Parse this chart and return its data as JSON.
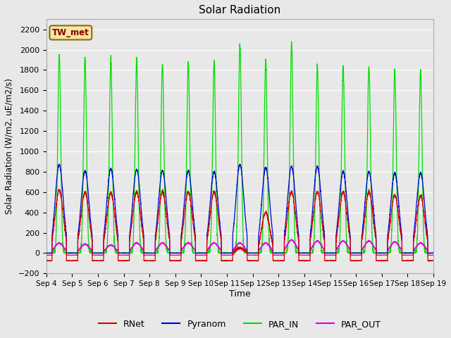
{
  "title": "Solar Radiation",
  "ylabel": "Solar Radiation (W/m2, uE/m2/s)",
  "xlabel": "Time",
  "ylim": [
    -200,
    2300
  ],
  "yticks": [
    -200,
    0,
    200,
    400,
    600,
    800,
    1000,
    1200,
    1400,
    1600,
    1800,
    2000,
    2200
  ],
  "xtick_labels": [
    "Sep 4",
    "Sep 5",
    "Sep 6",
    "Sep 7",
    "Sep 8",
    "Sep 9",
    "Sep 10",
    "Sep 11",
    "Sep 12",
    "Sep 13",
    "Sep 14",
    "Sep 15",
    "Sep 16",
    "Sep 17",
    "Sep 18",
    "Sep 19"
  ],
  "site_label": "TW_met",
  "colors": {
    "RNet": "#dd0000",
    "Pyranom": "#0000dd",
    "PAR_IN": "#00dd00",
    "PAR_OUT": "#dd00dd"
  },
  "bg_color": "#e8e8e8",
  "num_days": 15,
  "pts_per_day": 288,
  "peaks_rnet": [
    620,
    600,
    590,
    600,
    600,
    600,
    600,
    50,
    400,
    600,
    600,
    600,
    600,
    570,
    560
  ],
  "peaks_pyranom": [
    870,
    810,
    830,
    820,
    810,
    810,
    800,
    870,
    840,
    850,
    850,
    800,
    800,
    790,
    790
  ],
  "peaks_par_in": [
    1960,
    1930,
    1920,
    1910,
    1860,
    1870,
    1870,
    2050,
    1900,
    2050,
    1840,
    1840,
    1840,
    1800,
    1800
  ],
  "peaks_par_out": [
    100,
    90,
    80,
    100,
    100,
    100,
    100,
    100,
    100,
    130,
    120,
    120,
    120,
    110,
    100
  ]
}
